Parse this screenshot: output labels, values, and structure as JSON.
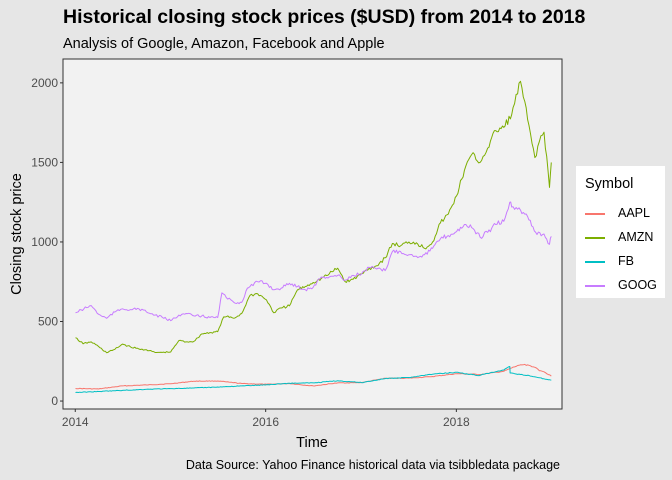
{
  "colors": {
    "AAPL": "#f8766d",
    "AMZN": "#7cae00",
    "FB": "#00bfc4",
    "GOOG": "#c77cff"
  },
  "chart_data": {
    "type": "line",
    "title": "Historical closing stock prices ($USD) from 2014 to 2018",
    "subtitle": "Analysis of Google, Amazon, Facebook and Apple",
    "caption": "Data Source: Yahoo Finance historical data via tsibbledata package",
    "xlabel": "Time",
    "ylabel": "Closing stock price",
    "xlim": [
      "2013-11-15",
      "2019-02-10"
    ],
    "ylim": [
      -50,
      2150
    ],
    "xticks": [
      "2014",
      "2016",
      "2018"
    ],
    "yticks": [
      0,
      500,
      1000,
      1500,
      2000
    ],
    "grid": false,
    "legend": {
      "title": "Symbol",
      "position": "right"
    },
    "series": [
      {
        "name": "AAPL",
        "x": [
          "2014-01-02",
          "2014-04-01",
          "2014-07-01",
          "2014-10-01",
          "2015-01-02",
          "2015-04-01",
          "2015-07-01",
          "2015-10-01",
          "2016-01-04",
          "2016-04-01",
          "2016-07-01",
          "2016-10-03",
          "2017-01-03",
          "2017-04-03",
          "2017-07-03",
          "2017-10-02",
          "2018-01-02",
          "2018-04-02",
          "2018-07-02",
          "2018-08-01",
          "2018-09-04",
          "2018-10-01",
          "2018-10-29",
          "2018-11-15",
          "2018-12-03",
          "2018-12-31"
        ],
        "y": [
          79,
          76,
          95,
          101,
          109,
          125,
          126,
          110,
          105,
          110,
          95,
          114,
          116,
          143,
          144,
          154,
          172,
          167,
          187,
          208,
          228,
          227,
          212,
          191,
          184,
          157
        ]
      },
      {
        "name": "AMZN",
        "x": [
          "2014-01-02",
          "2014-01-31",
          "2014-03-03",
          "2014-04-01",
          "2014-05-01",
          "2014-06-02",
          "2014-07-01",
          "2014-08-01",
          "2014-09-02",
          "2014-10-01",
          "2014-11-03",
          "2014-12-01",
          "2015-01-02",
          "2015-02-02",
          "2015-03-02",
          "2015-04-01",
          "2015-05-01",
          "2015-06-01",
          "2015-07-01",
          "2015-07-24",
          "2015-08-03",
          "2015-09-01",
          "2015-10-01",
          "2015-11-02",
          "2015-12-01",
          "2016-01-04",
          "2016-02-01",
          "2016-03-01",
          "2016-04-01",
          "2016-05-02",
          "2016-06-01",
          "2016-07-01",
          "2016-08-01",
          "2016-09-01",
          "2016-10-03",
          "2016-11-01",
          "2016-12-01",
          "2017-01-03",
          "2017-02-01",
          "2017-03-01",
          "2017-04-03",
          "2017-05-01",
          "2017-06-01",
          "2017-07-03",
          "2017-08-01",
          "2017-09-01",
          "2017-10-02",
          "2017-11-01",
          "2017-12-01",
          "2018-01-02",
          "2018-02-01",
          "2018-03-01",
          "2018-04-02",
          "2018-05-01",
          "2018-06-01",
          "2018-07-02",
          "2018-08-01",
          "2018-09-04",
          "2018-10-01",
          "2018-10-29",
          "2018-11-15",
          "2018-12-03",
          "2018-12-24",
          "2018-12-31"
        ],
        "y": [
          398,
          360,
          372,
          342,
          304,
          325,
          358,
          340,
          327,
          322,
          305,
          306,
          308,
          380,
          372,
          375,
          422,
          430,
          436,
          529,
          530,
          520,
          550,
          665,
          675,
          636,
          555,
          585,
          598,
          700,
          720,
          745,
          770,
          800,
          835,
          750,
          765,
          800,
          835,
          850,
          900,
          990,
          975,
          1000,
          995,
          960,
          1000,
          1120,
          1175,
          1290,
          1450,
          1550,
          1500,
          1590,
          1700,
          1720,
          1800,
          2010,
          1770,
          1530,
          1630,
          1690,
          1343,
          1500
        ]
      },
      {
        "name": "FB",
        "x": [
          "2014-01-02",
          "2014-04-01",
          "2014-07-01",
          "2014-10-01",
          "2015-01-02",
          "2015-04-01",
          "2015-07-01",
          "2015-10-01",
          "2016-01-04",
          "2016-04-01",
          "2016-07-01",
          "2016-10-03",
          "2017-01-03",
          "2017-04-03",
          "2017-07-03",
          "2017-10-02",
          "2018-01-02",
          "2018-03-26",
          "2018-05-01",
          "2018-07-02",
          "2018-07-25",
          "2018-07-26",
          "2018-09-04",
          "2018-10-01",
          "2018-11-01",
          "2018-12-03",
          "2018-12-31"
        ],
        "y": [
          54,
          60,
          67,
          74,
          78,
          82,
          88,
          95,
          102,
          112,
          114,
          128,
          116,
          141,
          148,
          169,
          181,
          160,
          173,
          195,
          217,
          176,
          167,
          162,
          151,
          140,
          131
        ]
      },
      {
        "name": "GOOG",
        "x": [
          "2014-01-02",
          "2014-02-03",
          "2014-03-03",
          "2014-04-01",
          "2014-05-01",
          "2014-06-02",
          "2014-07-01",
          "2014-08-01",
          "2014-09-02",
          "2014-10-01",
          "2014-11-03",
          "2014-12-01",
          "2015-01-02",
          "2015-02-02",
          "2015-03-02",
          "2015-04-01",
          "2015-05-01",
          "2015-06-01",
          "2015-07-01",
          "2015-07-17",
          "2015-08-03",
          "2015-09-01",
          "2015-10-01",
          "2015-10-23",
          "2015-11-02",
          "2015-12-01",
          "2016-01-04",
          "2016-02-01",
          "2016-03-01",
          "2016-04-01",
          "2016-05-02",
          "2016-06-01",
          "2016-07-01",
          "2016-08-01",
          "2016-09-01",
          "2016-10-03",
          "2016-11-01",
          "2016-12-01",
          "2017-01-03",
          "2017-02-01",
          "2017-03-01",
          "2017-04-03",
          "2017-05-01",
          "2017-06-01",
          "2017-07-03",
          "2017-08-01",
          "2017-09-01",
          "2017-10-02",
          "2017-11-01",
          "2017-12-01",
          "2018-01-02",
          "2018-02-01",
          "2018-03-01",
          "2018-04-02",
          "2018-05-01",
          "2018-06-01",
          "2018-07-02",
          "2018-07-25",
          "2018-08-01",
          "2018-09-04",
          "2018-10-01",
          "2018-11-01",
          "2018-12-03",
          "2018-12-24",
          "2018-12-31"
        ],
        "y": [
          555,
          580,
          600,
          545,
          520,
          560,
          580,
          575,
          580,
          560,
          540,
          525,
          505,
          540,
          550,
          535,
          535,
          525,
          525,
          680,
          650,
          620,
          620,
          710,
          720,
          750,
          740,
          700,
          710,
          740,
          720,
          700,
          715,
          780,
          780,
          790,
          760,
          790,
          800,
          840,
          830,
          820,
          940,
          940,
          920,
          910,
          920,
          960,
          1020,
          1040,
          1065,
          1110,
          1090,
          1030,
          1060,
          1110,
          1130,
          1250,
          1220,
          1200,
          1160,
          1060,
          1050,
          985,
          1035
        ]
      }
    ]
  }
}
